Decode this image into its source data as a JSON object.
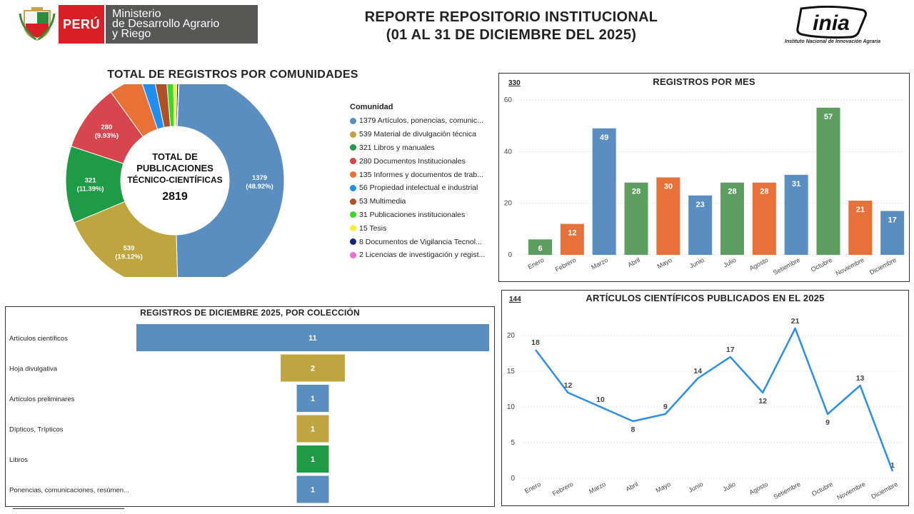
{
  "header": {
    "country": "PERÚ",
    "ministry_line1": "Ministerio",
    "ministry_line2": "de Desarrollo Agrario",
    "ministry_line3": "y Riego",
    "title_line1": "REPORTE REPOSITORIO INSTITUCIONAL",
    "title_line2": "(01 AL 31 DE DICIEMBRE DEL 2025)",
    "inia_name": "inia",
    "inia_full": "Instituto Nacional de Innovación Agraria"
  },
  "colors": {
    "blue": "#5b8ec0",
    "gold": "#bfa53f",
    "green": "#1f9a47",
    "red": "#d7464f",
    "orange": "#e87136",
    "mid_green": "#5e9e61",
    "light_blue": "#1f8ef0",
    "line_blue": "#2f8ee8"
  },
  "chart_data": [
    {
      "id": "donut",
      "type": "pie",
      "title": "TOTAL DE REGISTROS POR COMUNIDADES",
      "center_line1": "TOTAL DE",
      "center_line2": "PUBLICACIONES",
      "center_line3": "TÉCNICO-CIENTÍFICAS",
      "total": "2819",
      "legend_title": "Comunidad",
      "legend_placement": "right",
      "slices": [
        {
          "name": "Artículos, ponencias, comunic...",
          "value": 1379,
          "pct": "48.92%",
          "color": "#5b8ec0"
        },
        {
          "name": "Material de divulgación técnica",
          "value": 539,
          "pct": "19.12%",
          "color": "#bfa53f"
        },
        {
          "name": "Libros y manuales",
          "value": 321,
          "pct": "11.39%",
          "color": "#1f9a47"
        },
        {
          "name": "Documentos Institucionales",
          "value": 280,
          "pct": "9.93%",
          "color": "#d7464f"
        },
        {
          "name": "Informes y documentos de trab...",
          "value": 135,
          "pct": "",
          "color": "#e87136"
        },
        {
          "name": "Propiedad intelectual e industrial",
          "value": 56,
          "pct": "",
          "color": "#1f8ef0"
        },
        {
          "name": "Multimedia",
          "value": 53,
          "pct": "",
          "color": "#b0502a"
        },
        {
          "name": "Publicaciones institucionales",
          "value": 31,
          "pct": "",
          "color": "#3ed62a"
        },
        {
          "name": "Tesis",
          "value": 15,
          "pct": "",
          "color": "#f4f03a"
        },
        {
          "name": "Documentos de Vigilancia Tecnol...",
          "value": 8,
          "pct": "",
          "color": "#15237a"
        },
        {
          "name": "Licencias de investigación y regist...",
          "value": 2,
          "pct": "",
          "color": "#ef6fcf"
        }
      ]
    },
    {
      "id": "monthly",
      "type": "bar",
      "title": "REGISTROS POR MES",
      "total": "330",
      "ylim": [
        0,
        60
      ],
      "yticks": [
        0,
        20,
        40,
        60
      ],
      "grid": true,
      "categories": [
        "Enero",
        "Febrero",
        "Marzo",
        "Abril",
        "Mayo",
        "Junio",
        "Julio",
        "Agosto",
        "Setiembre",
        "Octubre",
        "Noviembre",
        "Diciembre"
      ],
      "values": [
        6,
        12,
        49,
        28,
        30,
        23,
        28,
        28,
        31,
        57,
        21,
        17
      ],
      "colors": [
        "#5e9e61",
        "#e8713a",
        "#5b8ec0",
        "#5e9e61",
        "#e8713a",
        "#5b8ec0",
        "#5e9e61",
        "#e8713a",
        "#5b8ec0",
        "#5e9e61",
        "#e8713a",
        "#5b8ec0"
      ]
    },
    {
      "id": "collections",
      "type": "bar",
      "orientation": "horizontal",
      "title": "REGISTROS DE DICIEMBRE 2025, POR COLECCIÓN",
      "categories": [
        "Artículos científicos",
        "Hoja divulgativa",
        "Artículos preliminares",
        "Dípticos, Trípticos",
        "Libros",
        "Ponencias, comunicaciones, resúmen..."
      ],
      "values": [
        11,
        2,
        1,
        1,
        1,
        1
      ],
      "colors": [
        "#5b8ec0",
        "#bfa53f",
        "#5b8ec0",
        "#bfa53f",
        "#1f9a47",
        "#5b8ec0"
      ]
    },
    {
      "id": "articles",
      "type": "line",
      "title": "ARTÍCULOS CIENTÍFICOS PUBLICADOS EN EL 2025",
      "total": "144",
      "ylim": [
        0,
        21
      ],
      "yticks": [
        0,
        5,
        10,
        15,
        20
      ],
      "grid": true,
      "categories": [
        "Enero",
        "Febrero",
        "Marzo",
        "Abril",
        "Mayo",
        "Junio",
        "Julio",
        "Agosto",
        "Setiembre",
        "Octubre",
        "Noviembre",
        "Diciembre"
      ],
      "values": [
        18,
        12,
        10,
        8,
        9,
        14,
        17,
        12,
        21,
        9,
        13,
        1
      ],
      "color": "#2f8ee8"
    }
  ]
}
